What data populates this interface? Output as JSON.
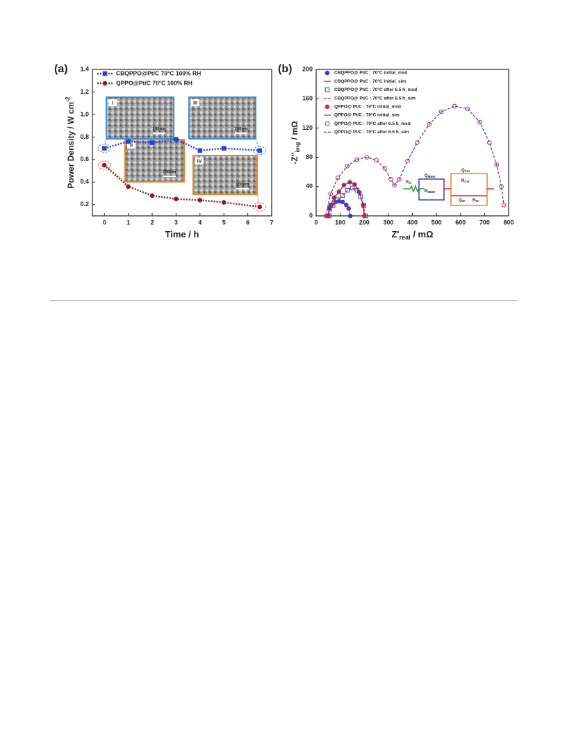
{
  "chart_data": [
    {
      "type": "line",
      "panel": "(a)",
      "x_label": {
        "text": "Time / h"
      },
      "y_label": {
        "text": "Power Density / W cm",
        "sup": "-2"
      },
      "xlim": [
        -0.5,
        7
      ],
      "xticks": [
        0,
        1,
        2,
        3,
        4,
        5,
        6,
        7
      ],
      "ylim": [
        0.1,
        1.4
      ],
      "yticks": [
        0.2,
        0.4,
        0.6,
        0.8,
        {
          "value": 1,
          "label": "1.0"
        },
        1.2,
        1.4
      ],
      "legend": "top-left",
      "series": [
        {
          "name": "CBQPPO@Pt/C 70°C 100% RH",
          "color": "#2a3fd6",
          "marker": "square",
          "line": "dotted",
          "x": [
            0,
            1,
            2,
            3,
            4,
            5,
            6.5
          ],
          "values": [
            0.7,
            0.76,
            0.75,
            0.78,
            0.68,
            0.7,
            0.68
          ]
        },
        {
          "name": "QPPO@Pt/C 70°C 100% RH",
          "color": "#8b1a1a",
          "marker": "circle",
          "line": "dotted",
          "x": [
            0,
            1,
            2,
            3,
            4,
            5,
            6.5
          ],
          "values": [
            0.55,
            0.36,
            0.28,
            0.25,
            0.24,
            0.22,
            0.18
          ]
        }
      ],
      "insets": [
        {
          "label": "I",
          "scale": "200nm"
        },
        {
          "label": "II",
          "scale": "200nm"
        },
        {
          "label": "III",
          "scale": "200nm"
        },
        {
          "label": "IV",
          "scale": "200nm"
        }
      ]
    },
    {
      "type": "scatter",
      "panel": "(b)",
      "x_label": {
        "text": "Z'",
        "sub": "real",
        "after": " / mΩ"
      },
      "y_label": {
        "text": "-Z''",
        "sub": "img",
        "after": " / mΩ"
      },
      "xlim": [
        0,
        800
      ],
      "xticks": [
        0,
        100,
        200,
        300,
        400,
        500,
        600,
        700,
        800
      ],
      "ylim": [
        0,
        200
      ],
      "yticks": [
        0,
        40,
        80,
        120,
        160,
        200
      ],
      "legend": "top-left",
      "series": [
        {
          "name": "CBQPPO@ Pt/C : 70°C initial_msd",
          "color": "#2a3fd6",
          "marker": "circle",
          "line": "none",
          "x": [
            47,
            55,
            65,
            80,
            95,
            110,
            125,
            135,
            142
          ],
          "values": [
            0,
            10,
            15,
            19,
            20,
            19,
            15,
            10,
            0
          ]
        },
        {
          "name": "CBQPPO@ Pt/C : 70°C initial_sim",
          "color": "#d62a2a",
          "marker": "none",
          "line": "solid",
          "x": [
            47,
            55,
            65,
            80,
            95,
            110,
            125,
            135,
            142
          ],
          "values": [
            0,
            10,
            15,
            19,
            20,
            19,
            15,
            10,
            0
          ]
        },
        {
          "name": "CBQPPO@ Pt/C : 70°C after 6.5 h_msd",
          "color": "#2a3fd6",
          "marker": "open-square",
          "line": "none",
          "x": [
            55,
            70,
            90,
            110,
            130,
            150,
            170,
            185,
            198,
            205
          ],
          "values": [
            0,
            14,
            22,
            28,
            35,
            38,
            35,
            26,
            14,
            0
          ]
        },
        {
          "name": "CBQPPO@ Pt/C : 70°C after 6.5 h_sim",
          "color": "#d62a2a",
          "marker": "none",
          "line": "dashed",
          "x": [
            55,
            70,
            90,
            110,
            130,
            150,
            170,
            185,
            198,
            205
          ],
          "values": [
            0,
            14,
            22,
            28,
            35,
            38,
            35,
            26,
            14,
            0
          ]
        },
        {
          "name": "QPPO@ Pt/C : 70°C initial_msd",
          "color": "#d62a2a",
          "marker": "circle",
          "line": "none",
          "x": [
            50,
            60,
            75,
            95,
            115,
            140,
            160,
            180,
            195,
            200
          ],
          "values": [
            0,
            15,
            25,
            33,
            42,
            46,
            43,
            32,
            15,
            0
          ]
        },
        {
          "name": "QPPO@ Pt/C : 70°C initial_sim",
          "color": "#3a2ab0",
          "marker": "none",
          "line": "solid",
          "x": [
            50,
            60,
            75,
            95,
            115,
            140,
            160,
            180,
            195,
            200
          ],
          "values": [
            0,
            15,
            25,
            33,
            42,
            46,
            43,
            32,
            15,
            0
          ]
        },
        {
          "name": "QPPO@ Pt/C : 70°C after 6.5 h_msd",
          "color": "#d62a2a",
          "marker": "open-circle",
          "line": "none",
          "x": [
            40,
            60,
            90,
            130,
            170,
            210,
            250,
            285,
            310,
            325,
            345,
            380,
            420,
            470,
            520,
            575,
            630,
            680,
            720,
            750,
            770,
            780
          ],
          "values": [
            0,
            30,
            52,
            68,
            77,
            80,
            76,
            65,
            50,
            42,
            50,
            75,
            100,
            125,
            142,
            150,
            146,
            128,
            100,
            70,
            40,
            15
          ]
        },
        {
          "name": "QPPO@ Pt/C : 70°C after 6.5 h_sim",
          "color": "#2a3fd6",
          "marker": "none",
          "line": "dashed",
          "x": [
            40,
            60,
            90,
            130,
            170,
            210,
            250,
            285,
            310,
            325,
            345,
            380,
            420,
            470,
            520,
            575,
            630,
            680,
            720,
            750,
            770,
            780
          ],
          "values": [
            0,
            30,
            52,
            68,
            77,
            80,
            76,
            65,
            50,
            42,
            50,
            75,
            100,
            125,
            142,
            150,
            146,
            128,
            100,
            70,
            40,
            15
          ]
        }
      ],
      "circuit": [
        {
          "main": "R",
          "sub": "el"
        },
        {
          "main": "Q",
          "sub": "MEM"
        },
        {
          "main": "R",
          "sub": "MEM"
        },
        {
          "main": "Q",
          "sub": "Cat"
        },
        {
          "main": "R",
          "sub": "Cat"
        },
        {
          "main": "Q",
          "sub": "W"
        },
        {
          "main": "R",
          "sub": "W"
        }
      ]
    }
  ]
}
